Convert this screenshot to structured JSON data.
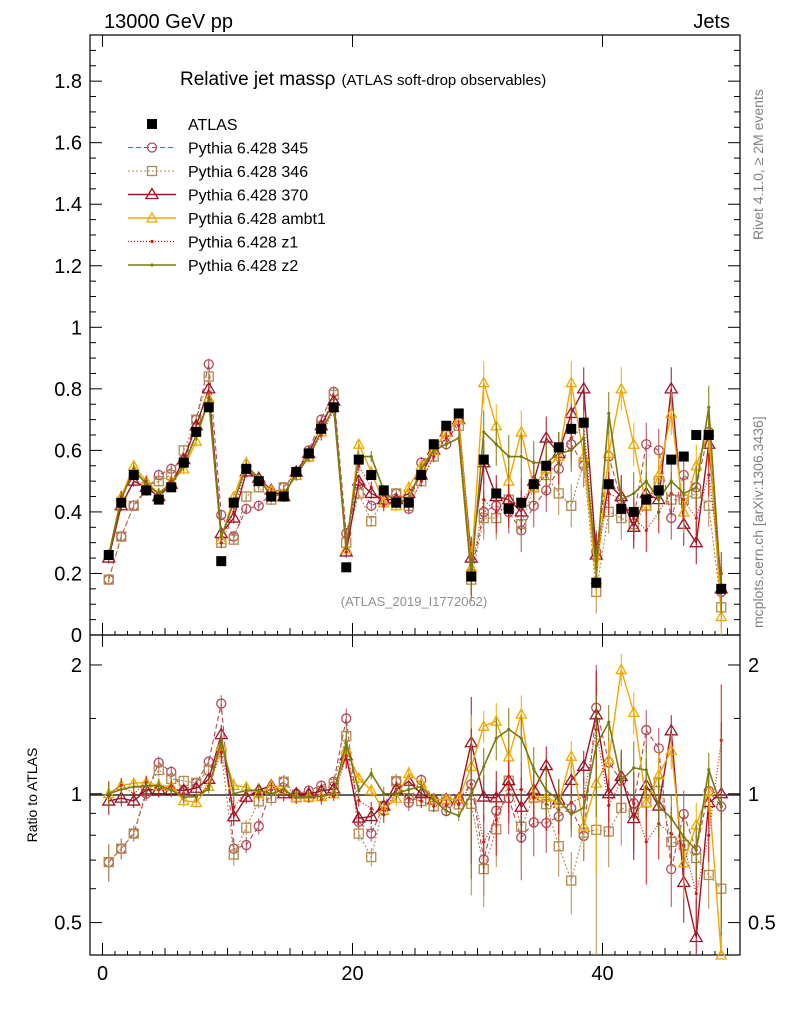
{
  "header": {
    "energy_label": "13000 GeV pp",
    "process_label": "Jets"
  },
  "side_labels": {
    "rivet": "Rivet 4.1.0, ≥ 2M events",
    "source": "mcplots.cern.ch [arXiv:1306.3436]"
  },
  "colors": {
    "atlas": "#000000",
    "p345": "#b04a5a",
    "p346": "#b08a50",
    "p370": "#9c1428",
    "ambt1": "#f0a800",
    "z1": "#cc1818",
    "z2": "#7a7a10"
  },
  "chart_data": {
    "type": "line",
    "title": "Relative jet mass",
    "title_symbol": "ρ",
    "subtitle": "(ATLAS soft-drop observables)",
    "analysis_tag": "(ATLAS_2019_I1772062)",
    "ratio_ylabel": "Ratio to ATLAS",
    "xlim": [
      -1,
      51
    ],
    "ylim_main": [
      0,
      1.95
    ],
    "ylim_ratio": [
      0.42,
      2.35
    ],
    "x_ticks": [
      "0",
      "20",
      "40"
    ],
    "y_ticks_main": [
      "0",
      "0.2",
      "0.4",
      "0.6",
      "0.8",
      "1",
      "1.2",
      "1.4",
      "1.6",
      "1.8"
    ],
    "y_ticks_ratio": [
      "0.5",
      "1",
      "2"
    ],
    "legend": [
      "ATLAS",
      "Pythia 6.428 345",
      "Pythia 6.428 346",
      "Pythia 6.428 370",
      "Pythia 6.428 ambt1",
      "Pythia 6.428 z1",
      "Pythia 6.428 z2"
    ],
    "x": [
      0.5,
      1.5,
      2.5,
      3.5,
      4.5,
      5.5,
      6.5,
      7.5,
      8.5,
      9.5,
      10.5,
      11.5,
      12.5,
      13.5,
      14.5,
      15.5,
      16.5,
      17.5,
      18.5,
      19.5,
      20.5,
      21.5,
      22.5,
      23.5,
      24.5,
      25.5,
      26.5,
      27.5,
      28.5,
      29.5,
      30.5,
      31.5,
      32.5,
      33.5,
      34.5,
      35.5,
      36.5,
      37.5,
      38.5,
      39.5,
      40.5,
      41.5,
      42.5,
      43.5,
      44.5,
      45.5,
      46.5,
      47.5,
      48.5,
      49.5
    ],
    "series": [
      {
        "name": "ATLAS",
        "style": "atlas",
        "values": [
          0.26,
          0.43,
          0.52,
          0.47,
          0.44,
          0.48,
          0.56,
          0.66,
          0.74,
          0.24,
          0.43,
          0.54,
          0.5,
          0.45,
          0.45,
          0.53,
          0.59,
          0.67,
          0.74,
          0.22,
          0.57,
          0.52,
          0.47,
          0.43,
          0.43,
          0.52,
          0.62,
          0.68,
          0.72,
          0.19,
          0.57,
          0.46,
          0.41,
          0.43,
          0.49,
          0.55,
          0.61,
          0.67,
          0.69,
          0.17,
          0.49,
          0.41,
          0.4,
          0.44,
          0.47,
          0.57,
          0.58,
          0.65,
          0.65,
          0.15
        ]
      },
      {
        "name": "Pythia 6.428 345",
        "style": "p345",
        "values": [
          0.18,
          0.32,
          0.42,
          0.47,
          0.52,
          0.54,
          0.57,
          0.7,
          0.88,
          0.39,
          0.32,
          0.41,
          0.42,
          0.46,
          0.48,
          0.53,
          0.6,
          0.7,
          0.79,
          0.33,
          0.49,
          0.42,
          0.44,
          0.46,
          0.41,
          0.56,
          0.6,
          0.62,
          0.7,
          0.2,
          0.4,
          0.42,
          0.4,
          0.34,
          0.42,
          0.47,
          0.54,
          0.62,
          0.55,
          0.27,
          0.58,
          0.44,
          0.38,
          0.62,
          0.6,
          0.38,
          0.52,
          0.48,
          0.66,
          0.14
        ]
      },
      {
        "name": "Pythia 6.428 346",
        "style": "p346",
        "values": [
          0.18,
          0.32,
          0.42,
          0.48,
          0.5,
          0.52,
          0.6,
          0.7,
          0.84,
          0.3,
          0.31,
          0.45,
          0.48,
          0.44,
          0.48,
          0.52,
          0.58,
          0.68,
          0.78,
          0.3,
          0.46,
          0.37,
          0.44,
          0.46,
          0.42,
          0.5,
          0.58,
          0.66,
          0.68,
          0.18,
          0.38,
          0.38,
          0.44,
          0.36,
          0.48,
          0.52,
          0.46,
          0.42,
          0.56,
          0.14,
          0.4,
          0.38,
          0.36,
          0.42,
          0.5,
          0.44,
          0.44,
          0.46,
          0.42,
          0.09
        ]
      },
      {
        "name": "Pythia 6.428 370",
        "style": "p370",
        "values": [
          0.25,
          0.42,
          0.5,
          0.48,
          0.45,
          0.49,
          0.57,
          0.68,
          0.8,
          0.33,
          0.38,
          0.53,
          0.51,
          0.47,
          0.45,
          0.53,
          0.59,
          0.68,
          0.76,
          0.27,
          0.5,
          0.46,
          0.44,
          0.44,
          0.46,
          0.52,
          0.6,
          0.66,
          0.7,
          0.25,
          0.56,
          0.45,
          0.44,
          0.4,
          0.5,
          0.64,
          0.59,
          0.72,
          0.8,
          0.26,
          0.49,
          0.45,
          0.35,
          0.46,
          0.44,
          0.8,
          0.36,
          0.3,
          0.62,
          0.15
        ]
      },
      {
        "name": "Pythia 6.428 ambt1",
        "style": "ambt1",
        "values": [
          0.26,
          0.45,
          0.55,
          0.5,
          0.46,
          0.5,
          0.54,
          0.63,
          0.77,
          0.31,
          0.45,
          0.56,
          0.5,
          0.47,
          0.46,
          0.52,
          0.58,
          0.66,
          0.74,
          0.28,
          0.62,
          0.53,
          0.43,
          0.42,
          0.48,
          0.55,
          0.6,
          0.66,
          0.7,
          0.22,
          0.82,
          0.68,
          0.5,
          0.66,
          0.48,
          0.54,
          0.58,
          0.82,
          0.58,
          0.18,
          0.59,
          0.8,
          0.62,
          0.42,
          0.52,
          0.72,
          0.4,
          0.55,
          0.66,
          0.06
        ]
      },
      {
        "name": "Pythia 6.428 z1",
        "style": "z1",
        "values": [
          0.26,
          0.45,
          0.52,
          0.5,
          0.45,
          0.5,
          0.56,
          0.65,
          0.77,
          0.3,
          0.4,
          0.55,
          0.5,
          0.46,
          0.46,
          0.52,
          0.58,
          0.65,
          0.73,
          0.27,
          0.55,
          0.48,
          0.42,
          0.44,
          0.42,
          0.5,
          0.58,
          0.64,
          0.68,
          0.2,
          0.44,
          0.4,
          0.42,
          0.44,
          0.48,
          0.52,
          0.56,
          0.64,
          0.68,
          0.24,
          0.46,
          0.44,
          0.38,
          0.34,
          0.4,
          0.46,
          0.44,
          0.38,
          0.52,
          0.2
        ]
      },
      {
        "name": "Pythia 6.428 z2",
        "style": "z2",
        "values": [
          0.26,
          0.44,
          0.54,
          0.49,
          0.46,
          0.49,
          0.55,
          0.65,
          0.76,
          0.32,
          0.43,
          0.55,
          0.51,
          0.45,
          0.46,
          0.52,
          0.58,
          0.66,
          0.74,
          0.29,
          0.58,
          0.58,
          0.47,
          0.43,
          0.44,
          0.54,
          0.6,
          0.62,
          0.64,
          0.19,
          0.66,
          0.62,
          0.58,
          0.58,
          0.56,
          0.56,
          0.59,
          0.6,
          0.64,
          0.22,
          0.72,
          0.44,
          0.46,
          0.5,
          0.44,
          0.5,
          0.46,
          0.48,
          0.74,
          0.14
        ]
      }
    ]
  }
}
